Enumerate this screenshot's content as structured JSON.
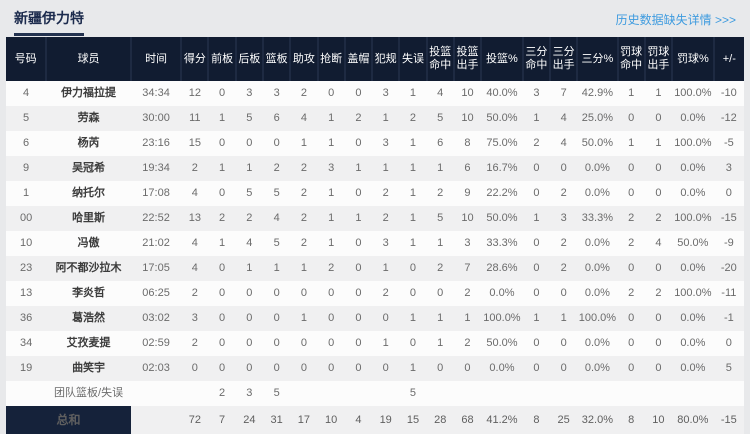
{
  "colors": {
    "header_bg": "#111c31",
    "accent_navy": "#15223a",
    "link_blue": "#3e9bdf",
    "stripe_gray": "#f0f0f1",
    "page_bg": "#e8e9eb"
  },
  "header": {
    "title": "新疆伊力特",
    "history_link": "历史数据缺失详情 >>>"
  },
  "table": {
    "columns": [
      [
        "号码"
      ],
      [
        "球员"
      ],
      [
        "时间"
      ],
      [
        "得分"
      ],
      [
        "前板"
      ],
      [
        "后板"
      ],
      [
        "篮板"
      ],
      [
        "助攻"
      ],
      [
        "抢断"
      ],
      [
        "盖帽"
      ],
      [
        "犯规"
      ],
      [
        "失误"
      ],
      [
        "投篮",
        "命中"
      ],
      [
        "投篮",
        "出手"
      ],
      [
        "投篮%"
      ],
      [
        "三分",
        "命中"
      ],
      [
        "三分",
        "出手"
      ],
      [
        "三分%"
      ],
      [
        "罚球",
        "命中"
      ],
      [
        "罚球",
        "出手"
      ],
      [
        "罚球%"
      ],
      [
        "+/-"
      ]
    ],
    "rows": [
      {
        "type": "player",
        "cells": [
          "4",
          "伊力福拉提",
          "34:34",
          "12",
          "0",
          "3",
          "3",
          "2",
          "0",
          "0",
          "3",
          "1",
          "4",
          "10",
          "40.0%",
          "3",
          "7",
          "42.9%",
          "1",
          "1",
          "100.0%",
          "-10"
        ]
      },
      {
        "type": "player",
        "cells": [
          "5",
          "劳森",
          "30:00",
          "11",
          "1",
          "5",
          "6",
          "4",
          "1",
          "2",
          "1",
          "2",
          "5",
          "10",
          "50.0%",
          "1",
          "4",
          "25.0%",
          "0",
          "0",
          "0.0%",
          "-12"
        ]
      },
      {
        "type": "player",
        "cells": [
          "6",
          "杨芮",
          "23:16",
          "15",
          "0",
          "0",
          "0",
          "1",
          "1",
          "0",
          "3",
          "1",
          "6",
          "8",
          "75.0%",
          "2",
          "4",
          "50.0%",
          "1",
          "1",
          "100.0%",
          "-5"
        ]
      },
      {
        "type": "player",
        "cells": [
          "9",
          "吴冠希",
          "19:34",
          "2",
          "1",
          "1",
          "2",
          "2",
          "3",
          "1",
          "1",
          "1",
          "1",
          "6",
          "16.7%",
          "0",
          "0",
          "0.0%",
          "0",
          "0",
          "0.0%",
          "3"
        ]
      },
      {
        "type": "player",
        "cells": [
          "1",
          "纳托尔",
          "17:08",
          "4",
          "0",
          "5",
          "5",
          "2",
          "1",
          "0",
          "2",
          "1",
          "2",
          "9",
          "22.2%",
          "0",
          "2",
          "0.0%",
          "0",
          "0",
          "0.0%",
          "0"
        ]
      },
      {
        "type": "player",
        "cells": [
          "00",
          "哈里斯",
          "22:52",
          "13",
          "2",
          "2",
          "4",
          "2",
          "1",
          "1",
          "2",
          "1",
          "5",
          "10",
          "50.0%",
          "1",
          "3",
          "33.3%",
          "2",
          "2",
          "100.0%",
          "-15"
        ]
      },
      {
        "type": "player",
        "cells": [
          "10",
          "冯傲",
          "21:02",
          "4",
          "1",
          "4",
          "5",
          "2",
          "1",
          "0",
          "3",
          "1",
          "1",
          "3",
          "33.3%",
          "0",
          "2",
          "0.0%",
          "2",
          "4",
          "50.0%",
          "-9"
        ]
      },
      {
        "type": "player",
        "cells": [
          "23",
          "阿不都沙拉木",
          "17:05",
          "4",
          "0",
          "1",
          "1",
          "1",
          "2",
          "0",
          "1",
          "0",
          "2",
          "7",
          "28.6%",
          "0",
          "2",
          "0.0%",
          "0",
          "0",
          "0.0%",
          "-20"
        ]
      },
      {
        "type": "player",
        "cells": [
          "13",
          "李炎哲",
          "06:25",
          "2",
          "0",
          "0",
          "0",
          "0",
          "0",
          "0",
          "2",
          "0",
          "0",
          "2",
          "0.0%",
          "0",
          "0",
          "0.0%",
          "2",
          "2",
          "100.0%",
          "-11"
        ]
      },
      {
        "type": "player",
        "cells": [
          "36",
          "葛浩然",
          "03:02",
          "3",
          "0",
          "0",
          "0",
          "1",
          "0",
          "0",
          "0",
          "1",
          "1",
          "1",
          "100.0%",
          "1",
          "1",
          "100.0%",
          "0",
          "0",
          "0.0%",
          "-1"
        ]
      },
      {
        "type": "player",
        "cells": [
          "34",
          "艾孜麦提",
          "02:59",
          "2",
          "0",
          "0",
          "0",
          "0",
          "0",
          "0",
          "1",
          "0",
          "1",
          "2",
          "50.0%",
          "0",
          "0",
          "0.0%",
          "0",
          "0",
          "0.0%",
          "0"
        ]
      },
      {
        "type": "player",
        "cells": [
          "19",
          "曲笑宇",
          "02:03",
          "0",
          "0",
          "0",
          "0",
          "0",
          "0",
          "0",
          "0",
          "1",
          "0",
          "0",
          "0.0%",
          "0",
          "0",
          "0.0%",
          "0",
          "0",
          "0.0%",
          "5"
        ]
      },
      {
        "type": "team",
        "cells": [
          "",
          "团队篮板/失误",
          "",
          "",
          "2",
          "3",
          "5",
          "",
          "",
          "",
          "",
          "5",
          "",
          "",
          "",
          "",
          "",
          "",
          "",
          "",
          "",
          ""
        ]
      },
      {
        "type": "total",
        "cells": [
          "总和",
          "",
          "72",
          "7",
          "24",
          "31",
          "17",
          "10",
          "4",
          "19",
          "15",
          "28",
          "68",
          "41.2%",
          "8",
          "25",
          "32.0%",
          "8",
          "10",
          "80.0%",
          "-15"
        ]
      }
    ]
  }
}
